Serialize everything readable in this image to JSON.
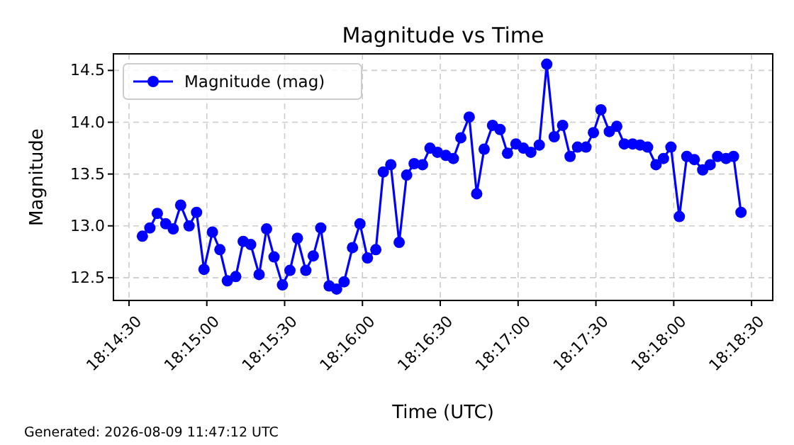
{
  "chart_data": {
    "type": "line",
    "title": "Magnitude vs Time",
    "xlabel": "Time (UTC)",
    "ylabel": "Magnitude",
    "annotations": [
      "Generated: 2026-08-09 11:47:12 UTC"
    ],
    "x": [
      18.2431,
      18.2439,
      18.2447,
      18.2456,
      18.2464,
      18.2472,
      18.2481,
      18.2489,
      18.2497,
      18.2506,
      18.2514,
      18.2522,
      18.2531,
      18.2539,
      18.2547,
      18.2556,
      18.2564,
      18.2572,
      18.2581,
      18.2589,
      18.2597,
      18.2606,
      18.2614,
      18.2622,
      18.2631,
      18.2639,
      18.2647,
      18.2656,
      18.2664,
      18.2672,
      18.2681,
      18.2689,
      18.2697,
      18.2706,
      18.2714,
      18.2722,
      18.2731,
      18.2739,
      18.2747,
      18.2756,
      18.2764,
      18.2772,
      18.2781,
      18.2789,
      18.2797,
      18.2806,
      18.2814,
      18.2822,
      18.2831,
      18.2839,
      18.2847,
      18.2856,
      18.2864,
      18.2872,
      18.2881,
      18.2889,
      18.2897,
      18.2906,
      18.2914,
      18.2922,
      18.2931,
      18.2939,
      18.2947,
      18.2956,
      18.2964,
      18.2972,
      18.2981,
      18.2989,
      18.2997,
      18.3006,
      18.3014,
      18.3022,
      18.3031,
      18.3039,
      18.3047,
      18.3056,
      18.3064,
      18.3072
    ],
    "series": [
      {
        "name": "Magnitude (mag)",
        "color": "#0000ff",
        "values": [
          12.9,
          12.98,
          13.12,
          13.02,
          12.97,
          13.2,
          13.0,
          13.13,
          12.58,
          12.94,
          12.77,
          12.47,
          12.51,
          12.85,
          12.82,
          12.53,
          12.97,
          12.7,
          12.43,
          12.57,
          12.88,
          12.57,
          12.71,
          12.98,
          12.42,
          12.39,
          12.46,
          12.79,
          13.02,
          12.69,
          12.77,
          13.52,
          13.59,
          12.84,
          13.49,
          13.6,
          13.59,
          13.75,
          13.71,
          13.68,
          13.65,
          13.85,
          14.05,
          13.31,
          13.74,
          13.97,
          13.93,
          13.7,
          13.79,
          13.75,
          13.71,
          13.78,
          14.56,
          13.86,
          13.97,
          13.67,
          13.76,
          13.76,
          13.9,
          14.12,
          13.91,
          13.96,
          13.79,
          13.79,
          13.78,
          13.76,
          13.59,
          13.65,
          13.76,
          13.09,
          13.67,
          13.64,
          13.54,
          13.59,
          13.67,
          13.65,
          13.67,
          13.13
        ]
      }
    ],
    "xlim": [
      18.24,
      18.3106
    ],
    "xticks": [
      {
        "value": 18.241667,
        "label": "18:14:30"
      },
      {
        "value": 18.25,
        "label": "18:15:00"
      },
      {
        "value": 18.258333,
        "label": "18:15:30"
      },
      {
        "value": 18.266667,
        "label": "18:16:00"
      },
      {
        "value": 18.275,
        "label": "18:16:30"
      },
      {
        "value": 18.283333,
        "label": "18:17:00"
      },
      {
        "value": 18.291667,
        "label": "18:17:30"
      },
      {
        "value": 18.3,
        "label": "18:18:00"
      },
      {
        "value": 18.308333,
        "label": "18:18:30"
      }
    ],
    "ylim": [
      12.28,
      14.66
    ],
    "yticks": [
      12.5,
      {
        "value": 13,
        "label": "13.0"
      },
      13.5,
      {
        "value": 14,
        "label": "14.0"
      },
      14.5
    ],
    "grid": true,
    "legend": "top left",
    "marker": "circle",
    "line_style": "solid"
  }
}
